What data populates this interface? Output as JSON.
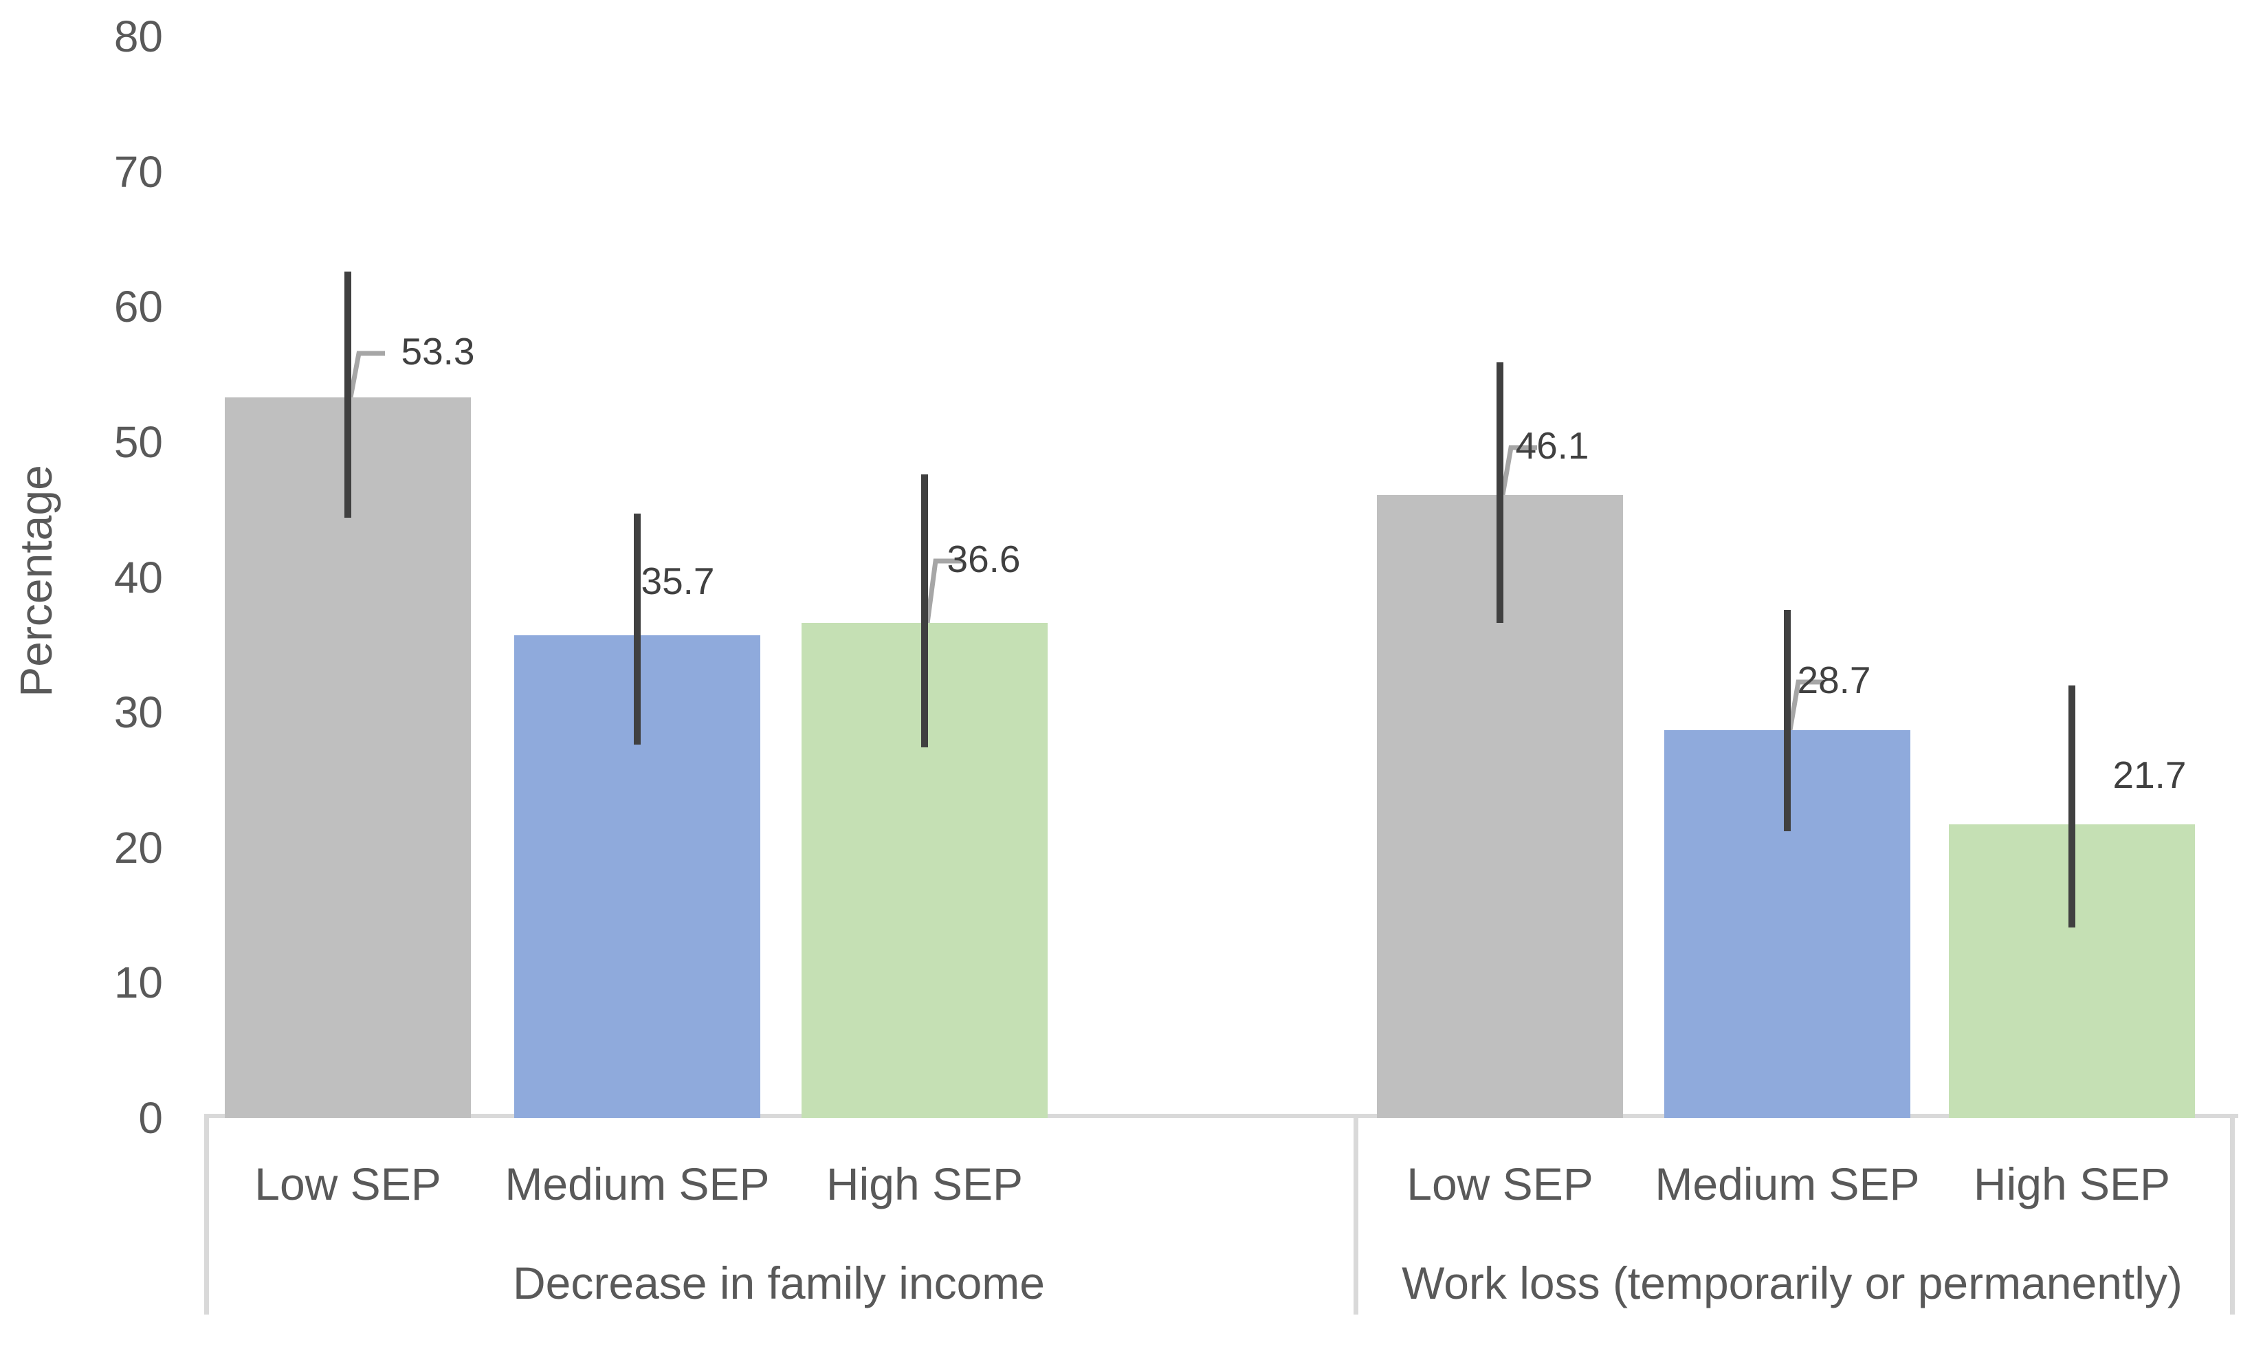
{
  "chart_data": {
    "type": "bar",
    "title": "",
    "xlabel": "",
    "ylabel": "Percentage",
    "ylim": [
      0,
      80
    ],
    "yticks": [
      0,
      10,
      20,
      30,
      40,
      50,
      60,
      70,
      80
    ],
    "grid": false,
    "legend": "none",
    "bar_unit": "percent",
    "groups": [
      {
        "label": "Decrease in family income",
        "bars": [
          {
            "category": "Low SEP",
            "value": 53.3,
            "data_label": "53.3",
            "ci_low": 44.4,
            "ci_high": 62.6,
            "color": "#BFBFBF",
            "leader_line": true
          },
          {
            "category": "Medium SEP",
            "value": 35.7,
            "data_label": "35.7",
            "ci_low": 27.6,
            "ci_high": 44.7,
            "color": "#8FAADC",
            "leader_line": false
          },
          {
            "category": "High SEP",
            "value": 36.6,
            "data_label": "36.6",
            "ci_low": 27.4,
            "ci_high": 47.6,
            "color": "#C5E0B4",
            "leader_line": true
          }
        ]
      },
      {
        "label": "Work loss (temporarily or permanently)",
        "bars": [
          {
            "category": "Low SEP",
            "value": 46.1,
            "data_label": "46.1",
            "ci_low": 36.6,
            "ci_high": 55.9,
            "color": "#BFBFBF",
            "leader_line": true
          },
          {
            "category": "Medium SEP",
            "value": 28.7,
            "data_label": "28.7",
            "ci_low": 21.2,
            "ci_high": 37.6,
            "color": "#8FAADC",
            "leader_line": true
          },
          {
            "category": "High SEP",
            "value": 21.7,
            "data_label": "21.7",
            "ci_low": 14.1,
            "ci_high": 32.0,
            "color": "#C5E0B4",
            "leader_line": false
          }
        ]
      }
    ],
    "colors": {
      "background": "#FFFFFF",
      "axis_text": "#595959",
      "value_label_text": "#404040",
      "error_bar": "#404040",
      "leader_line": "#A6A6A6",
      "axis_line": "#D9D9D9"
    }
  }
}
